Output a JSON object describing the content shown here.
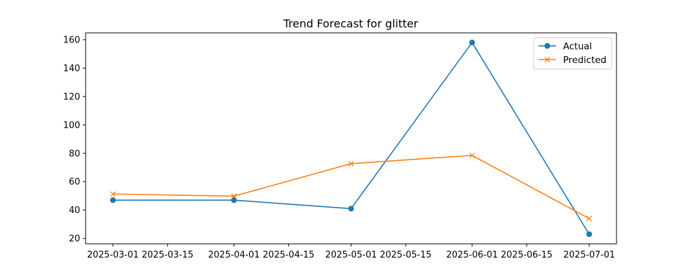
{
  "chart_data": {
    "type": "line",
    "title": "Trend Forecast for glitter",
    "xlabel": "",
    "ylabel": "",
    "x": [
      "2025-03-01",
      "2025-04-01",
      "2025-05-01",
      "2025-06-01",
      "2025-07-01"
    ],
    "series": [
      {
        "name": "Actual",
        "values": [
          47,
          47,
          41,
          158,
          23
        ],
        "color": "#1f77b4",
        "marker": "circle"
      },
      {
        "name": "Predicted",
        "values": [
          51.3,
          49.8,
          72.7,
          78.5,
          34.1
        ],
        "color": "#ff7f0e",
        "marker": "x"
      }
    ],
    "xlim": [
      "2025-02-22",
      "2025-07-08"
    ],
    "ylim": [
      16.2,
      164.8
    ],
    "x_ticks": [
      "2025-03-01",
      "2025-03-15",
      "2025-04-01",
      "2025-04-15",
      "2025-05-01",
      "2025-05-15",
      "2025-06-01",
      "2025-06-15",
      "2025-07-01"
    ],
    "y_ticks": [
      20,
      40,
      60,
      80,
      100,
      120,
      140,
      160
    ],
    "grid": false,
    "legend_position": "top-right"
  }
}
